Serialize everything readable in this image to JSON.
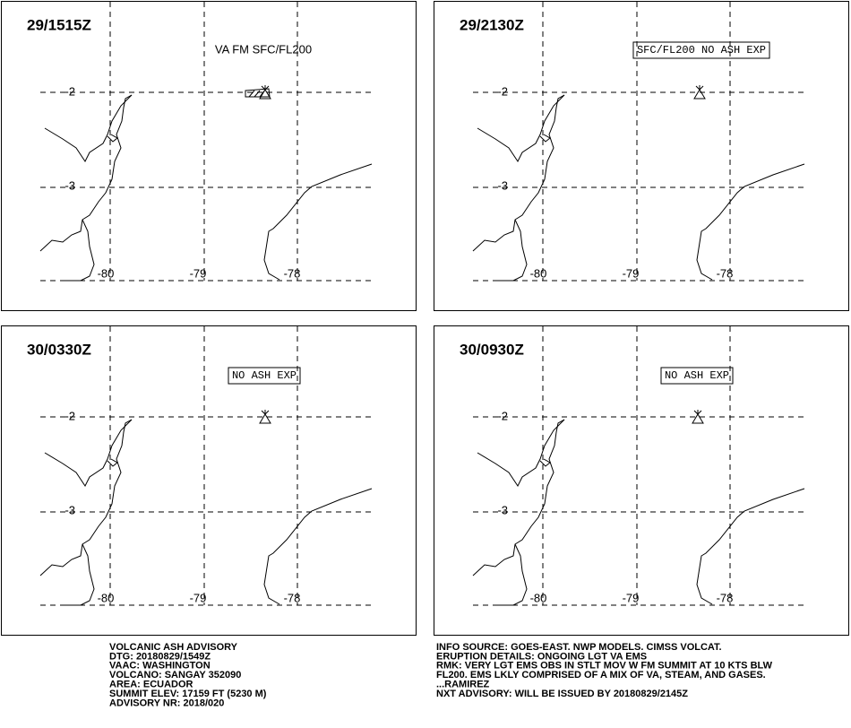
{
  "panels": [
    {
      "time": "29/1515Z",
      "annotation": "VA FM SFC/FL200"
    },
    {
      "time": "29/2130Z",
      "annotation": "SFC/FL200 NO ASH EXP"
    },
    {
      "time": "30/0330Z",
      "annotation": "NO ASH EXP"
    },
    {
      "time": "30/0930Z",
      "annotation": "NO ASH EXP"
    }
  ],
  "grid": {
    "lat": [
      "-2",
      "-3"
    ],
    "lon": [
      "-80",
      "-79",
      "-78"
    ]
  },
  "advisory": {
    "left": [
      "VOLCANIC ASH ADVISORY",
      "DTG: 20180829/1549Z",
      "VAAC: WASHINGTON",
      "VOLCANO: SANGAY 352090",
      "AREA: ECUADOR",
      "SUMMIT ELEV: 17159 FT (5230 M)",
      "ADVISORY NR: 2018/020"
    ],
    "right": [
      "INFO SOURCE: GOES-EAST. NWP MODELS. CIMSS VOLCAT.",
      "ERUPTION DETAILS: ONGOING LGT VA EMS",
      "RMK: VERY LGT EMS OBS IN STLT MOV W FM SUMMIT AT 10 KTS BLW",
      "FL200. EMS LKLY COMPRISED OF A MIX OF VA, STEAM, AND GASES.",
      "...RAMIREZ",
      "NXT ADVISORY: WILL BE ISSUED BY 20180829/2145Z"
    ]
  }
}
